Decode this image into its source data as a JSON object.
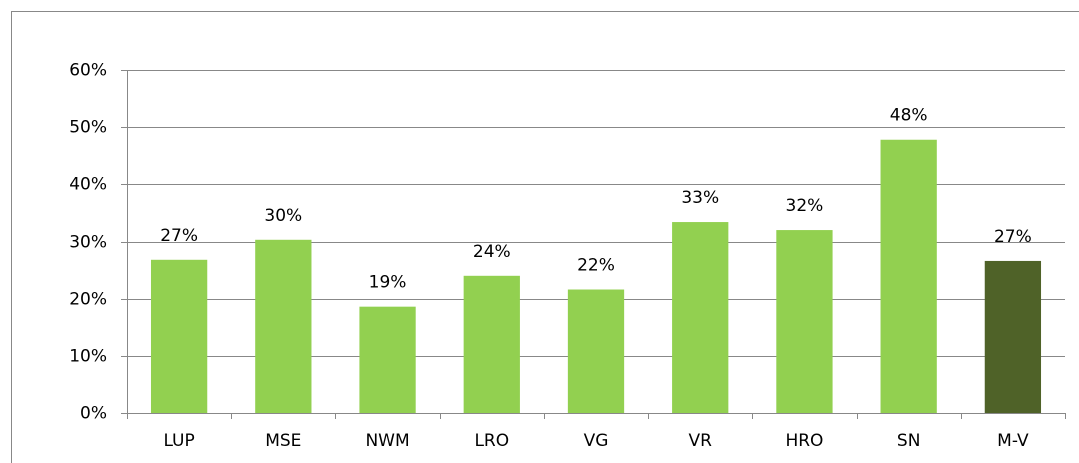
{
  "chart_data": {
    "type": "bar",
    "categories": [
      "LUP",
      "MSE",
      "NWM",
      "LRO",
      "VG",
      "VR",
      "HRO",
      "SN",
      "M-V"
    ],
    "values": [
      26.8,
      30.3,
      18.6,
      24.0,
      21.6,
      33.4,
      32.0,
      47.8,
      26.6
    ],
    "value_labels": [
      "27%",
      "30%",
      "19%",
      "24%",
      "22%",
      "33%",
      "32%",
      "48%",
      "27%"
    ],
    "colors": [
      "#92d050",
      "#92d050",
      "#92d050",
      "#92d050",
      "#92d050",
      "#92d050",
      "#92d050",
      "#92d050",
      "#4f6228"
    ],
    "ylim": [
      0,
      60
    ],
    "yticks": [
      {
        "value": 0,
        "label": "0%"
      },
      {
        "value": 10,
        "label": "10%"
      },
      {
        "value": 20,
        "label": "20%"
      },
      {
        "value": 30,
        "label": "30%"
      },
      {
        "value": 40,
        "label": "40%"
      },
      {
        "value": 50,
        "label": "50%"
      },
      {
        "value": 60,
        "label": "60%"
      }
    ],
    "grid": true
  }
}
